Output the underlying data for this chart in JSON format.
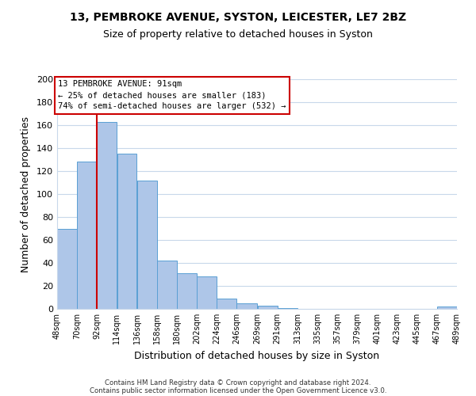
{
  "title_line1": "13, PEMBROKE AVENUE, SYSTON, LEICESTER, LE7 2BZ",
  "title_line2": "Size of property relative to detached houses in Syston",
  "xlabel": "Distribution of detached houses by size in Syston",
  "ylabel": "Number of detached properties",
  "bar_left_edges": [
    48,
    70,
    92,
    114,
    136,
    158,
    180,
    202,
    224,
    246,
    269,
    291,
    313,
    335,
    357,
    379,
    401,
    423,
    445,
    467
  ],
  "bar_heights": [
    70,
    128,
    163,
    135,
    112,
    42,
    31,
    28,
    9,
    5,
    3,
    1,
    0,
    0,
    0,
    0,
    0,
    0,
    0,
    2
  ],
  "bar_widths": [
    22,
    22,
    22,
    22,
    22,
    22,
    22,
    22,
    22,
    23,
    22,
    22,
    22,
    22,
    22,
    22,
    22,
    22,
    22,
    22
  ],
  "tick_labels": [
    "48sqm",
    "70sqm",
    "92sqm",
    "114sqm",
    "136sqm",
    "158sqm",
    "180sqm",
    "202sqm",
    "224sqm",
    "246sqm",
    "269sqm",
    "291sqm",
    "313sqm",
    "335sqm",
    "357sqm",
    "379sqm",
    "401sqm",
    "423sqm",
    "445sqm",
    "467sqm",
    "489sqm"
  ],
  "tick_positions": [
    48,
    70,
    92,
    114,
    136,
    158,
    180,
    202,
    224,
    246,
    269,
    291,
    313,
    335,
    357,
    379,
    401,
    423,
    445,
    467,
    489
  ],
  "bar_color": "#aec6e8",
  "bar_edge_color": "#5a9fd4",
  "marker_x": 92,
  "marker_color": "#cc0000",
  "ylim": [
    0,
    200
  ],
  "yticks": [
    0,
    20,
    40,
    60,
    80,
    100,
    120,
    140,
    160,
    180,
    200
  ],
  "annotation_title": "13 PEMBROKE AVENUE: 91sqm",
  "annotation_line1": "← 25% of detached houses are smaller (183)",
  "annotation_line2": "74% of semi-detached houses are larger (532) →",
  "annotation_box_color": "#ffffff",
  "annotation_box_edge": "#cc0000",
  "footer_line1": "Contains HM Land Registry data © Crown copyright and database right 2024.",
  "footer_line2": "Contains public sector information licensed under the Open Government Licence v3.0.",
  "bg_color": "#ffffff",
  "grid_color": "#c8d8ea",
  "xlim_left": 48,
  "xlim_right": 489
}
